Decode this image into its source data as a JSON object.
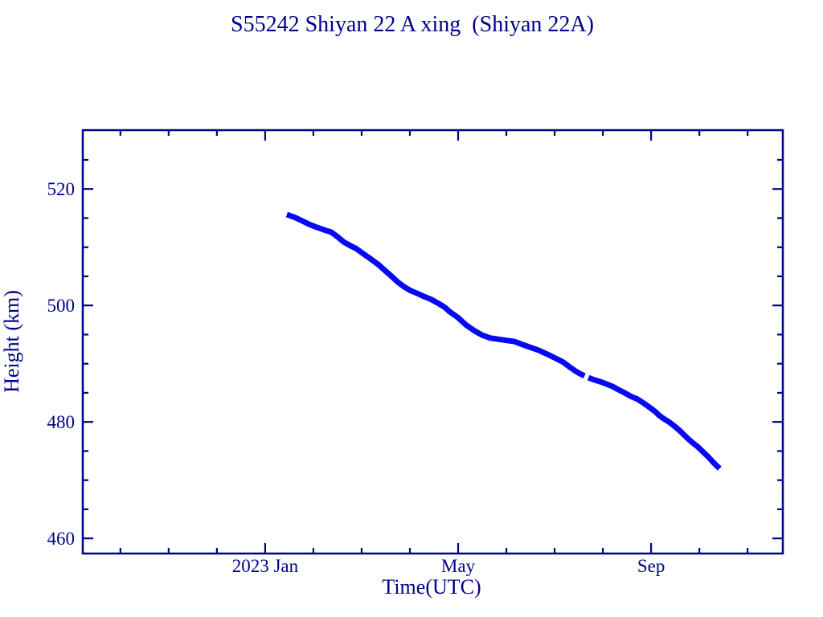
{
  "page": {
    "background": "#ffffff"
  },
  "chart_data": {
    "type": "line",
    "title": "S55242 Shiyan 22 A xing  (Shiyan 22A)",
    "xlabel": "Time(UTC)",
    "ylabel": "Height (km)",
    "x_unit": "months since 2023-01-01",
    "xlim": [
      -3.78,
      10.73
    ],
    "ylim": [
      457.4,
      530.1
    ],
    "grid": false,
    "legend": null,
    "x_major_ticks": [
      {
        "value": 0,
        "label": "2023 Jan"
      },
      {
        "value": 4,
        "label": "May"
      },
      {
        "value": 8,
        "label": "Sep"
      }
    ],
    "x_minor_ticks": [
      -3,
      -2,
      -1,
      1,
      2,
      3,
      5,
      6,
      7,
      9,
      10
    ],
    "y_major_ticks": [
      {
        "value": 460,
        "label": "460"
      },
      {
        "value": 480,
        "label": "480"
      },
      {
        "value": 500,
        "label": "500"
      },
      {
        "value": 520,
        "label": "520"
      }
    ],
    "y_minor_ticks": [
      465,
      470,
      475,
      485,
      490,
      495,
      505,
      510,
      515,
      525
    ],
    "colors": {
      "axis": "#00008b",
      "text": "#00008b",
      "series": "#0808f5",
      "background": "#ffffff"
    },
    "series": [
      {
        "name": "orbital height",
        "segments": [
          [
            [
              0.45,
              515.6
            ],
            [
              0.62,
              515.1
            ],
            [
              0.75,
              514.6
            ],
            [
              0.92,
              513.9
            ],
            [
              1.08,
              513.4
            ],
            [
              1.25,
              512.9
            ],
            [
              1.37,
              512.6
            ],
            [
              1.5,
              511.8
            ],
            [
              1.63,
              510.9
            ],
            [
              1.78,
              510.2
            ],
            [
              1.88,
              509.8
            ],
            [
              2.03,
              508.9
            ],
            [
              2.2,
              507.9
            ],
            [
              2.35,
              507.0
            ],
            [
              2.47,
              506.1
            ],
            [
              2.62,
              505.0
            ],
            [
              2.75,
              504.0
            ],
            [
              2.88,
              503.2
            ],
            [
              3.0,
              502.6
            ],
            [
              3.17,
              502.0
            ],
            [
              3.3,
              501.5
            ],
            [
              3.45,
              501.0
            ],
            [
              3.58,
              500.4
            ],
            [
              3.72,
              499.7
            ],
            [
              3.83,
              498.9
            ],
            [
              4.0,
              497.9
            ],
            [
              4.17,
              496.6
            ],
            [
              4.33,
              495.7
            ],
            [
              4.5,
              494.9
            ],
            [
              4.67,
              494.4
            ],
            [
              4.83,
              494.2
            ],
            [
              5.0,
              494.0
            ],
            [
              5.17,
              493.8
            ],
            [
              5.33,
              493.3
            ],
            [
              5.5,
              492.8
            ],
            [
              5.67,
              492.3
            ],
            [
              5.83,
              491.7
            ],
            [
              6.0,
              491.0
            ],
            [
              6.17,
              490.3
            ],
            [
              6.3,
              489.5
            ],
            [
              6.42,
              488.8
            ],
            [
              6.52,
              488.3
            ],
            [
              6.62,
              487.9
            ]
          ],
          [
            [
              6.7,
              487.6
            ],
            [
              6.83,
              487.2
            ],
            [
              6.95,
              486.9
            ],
            [
              7.08,
              486.5
            ],
            [
              7.2,
              486.1
            ],
            [
              7.33,
              485.5
            ],
            [
              7.45,
              485.0
            ],
            [
              7.58,
              484.4
            ],
            [
              7.72,
              483.9
            ],
            [
              7.85,
              483.2
            ],
            [
              7.97,
              482.5
            ],
            [
              8.08,
              481.8
            ],
            [
              8.17,
              481.1
            ],
            [
              8.27,
              480.5
            ],
            [
              8.37,
              480.0
            ],
            [
              8.48,
              479.3
            ],
            [
              8.58,
              478.6
            ],
            [
              8.68,
              477.8
            ],
            [
              8.78,
              477.0
            ],
            [
              8.88,
              476.3
            ],
            [
              8.97,
              475.7
            ],
            [
              9.07,
              474.9
            ],
            [
              9.17,
              474.1
            ],
            [
              9.25,
              473.4
            ],
            [
              9.33,
              472.7
            ],
            [
              9.42,
              472.0
            ]
          ]
        ]
      }
    ]
  }
}
